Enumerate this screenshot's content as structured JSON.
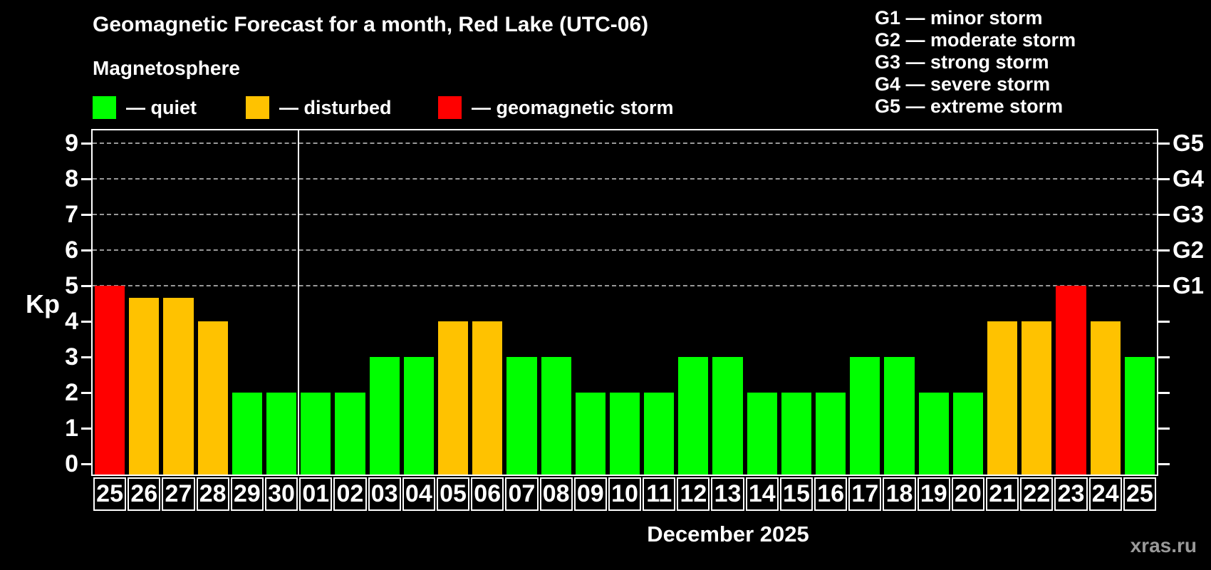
{
  "header": {
    "title": "Geomagnetic Forecast for a month, Red Lake (UTC-06)",
    "subtitle": "Magnetosphere"
  },
  "legend": {
    "quiet_label": "— quiet",
    "disturbed_label": "— disturbed",
    "storm_label": "— geomagnetic storm"
  },
  "g_legend": {
    "lines": [
      "G1 — minor storm",
      "G2 — moderate storm",
      "G3 — strong storm",
      "G4 — severe storm",
      "G5 — extreme storm"
    ]
  },
  "palette": {
    "quiet": "#00FF00",
    "disturbed": "#FFC200",
    "storm": "#FF0000",
    "grid": "#999999",
    "frame": "#FFFFFF",
    "background": "#000000",
    "watermark_color": "#999999"
  },
  "axes": {
    "y_label": "Kp",
    "y_ticks": [
      0,
      1,
      2,
      3,
      4,
      5,
      6,
      7,
      8,
      9
    ],
    "grid_levels": [
      5,
      6,
      7,
      8,
      9
    ],
    "right_labels": [
      {
        "label": "G1",
        "level": 5
      },
      {
        "label": "G2",
        "level": 6
      },
      {
        "label": "G3",
        "level": 7
      },
      {
        "label": "G4",
        "level": 8
      },
      {
        "label": "G5",
        "level": 9
      }
    ],
    "x_title": "December 2025"
  },
  "chart_data": {
    "type": "bar",
    "title": "Geomagnetic Forecast for a month, Red Lake (UTC-06)",
    "subtitle": "Magnetosphere",
    "xlabel": "December 2025",
    "ylabel": "Kp",
    "ylim": [
      0,
      9
    ],
    "grid": "horizontal dashed lines at Kp 5,6,7,8,9 mapped to G1–G5",
    "legend_position": "top-left",
    "categories": [
      "25",
      "26",
      "27",
      "28",
      "29",
      "30",
      "01",
      "02",
      "03",
      "04",
      "05",
      "06",
      "07",
      "08",
      "09",
      "10",
      "11",
      "12",
      "13",
      "14",
      "15",
      "16",
      "17",
      "18",
      "19",
      "20",
      "21",
      "22",
      "23",
      "24",
      "25"
    ],
    "values": [
      5,
      4.67,
      4.67,
      4,
      2,
      2,
      2,
      2,
      3,
      3,
      4,
      4,
      3,
      3,
      2,
      2,
      2,
      3,
      3,
      2,
      2,
      2,
      3,
      3,
      2,
      2,
      4,
      4,
      5,
      4,
      3
    ],
    "states": [
      "storm",
      "disturbed",
      "disturbed",
      "disturbed",
      "quiet",
      "quiet",
      "quiet",
      "quiet",
      "quiet",
      "quiet",
      "disturbed",
      "disturbed",
      "quiet",
      "quiet",
      "quiet",
      "quiet",
      "quiet",
      "quiet",
      "quiet",
      "quiet",
      "quiet",
      "quiet",
      "quiet",
      "quiet",
      "quiet",
      "quiet",
      "disturbed",
      "disturbed",
      "storm",
      "disturbed",
      "quiet"
    ],
    "month_boundary_index": 6
  },
  "watermark": "xras.ru"
}
